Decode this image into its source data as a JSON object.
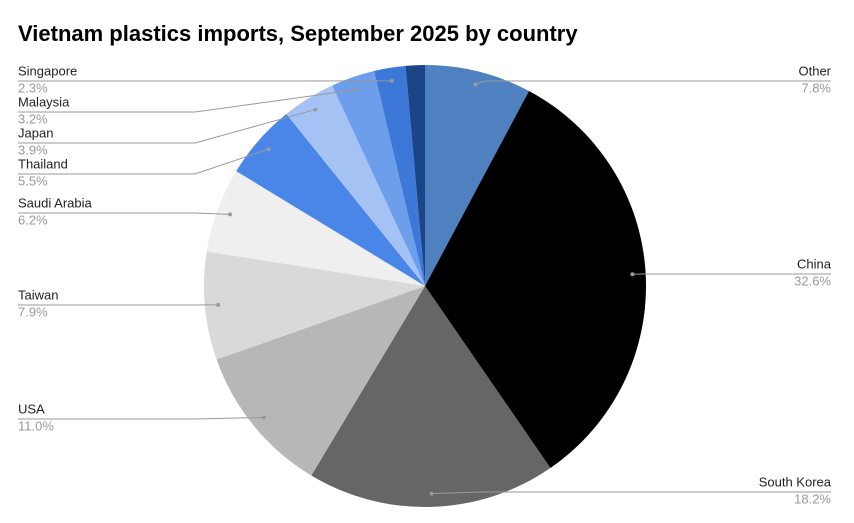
{
  "chart_data": {
    "type": "pie",
    "title": "Vietnam plastics imports, September 2025 by country",
    "categories": [
      "Other",
      "China",
      "South Korea",
      "USA",
      "Taiwan",
      "Saudi Arabia",
      "Thailand",
      "Japan",
      "Malaysia",
      "Singapore",
      null
    ],
    "values": [
      7.8,
      32.6,
      18.2,
      11.0,
      7.9,
      6.2,
      5.5,
      3.9,
      3.2,
      2.3,
      1.4
    ],
    "value_labels": [
      "7.8%",
      "32.6%",
      "18.2%",
      "11.0%",
      "7.9%",
      "6.2%",
      "5.5%",
      "3.9%",
      "3.2%",
      "2.3%",
      null
    ],
    "colors": [
      "#4f81c0",
      "#000000",
      "#666666",
      "#b7b7b7",
      "#d9d9d9",
      "#efefef",
      "#4a86e8",
      "#a4c2f4",
      "#6d9eeb",
      "#3c78d8",
      "#1c4587"
    ]
  }
}
